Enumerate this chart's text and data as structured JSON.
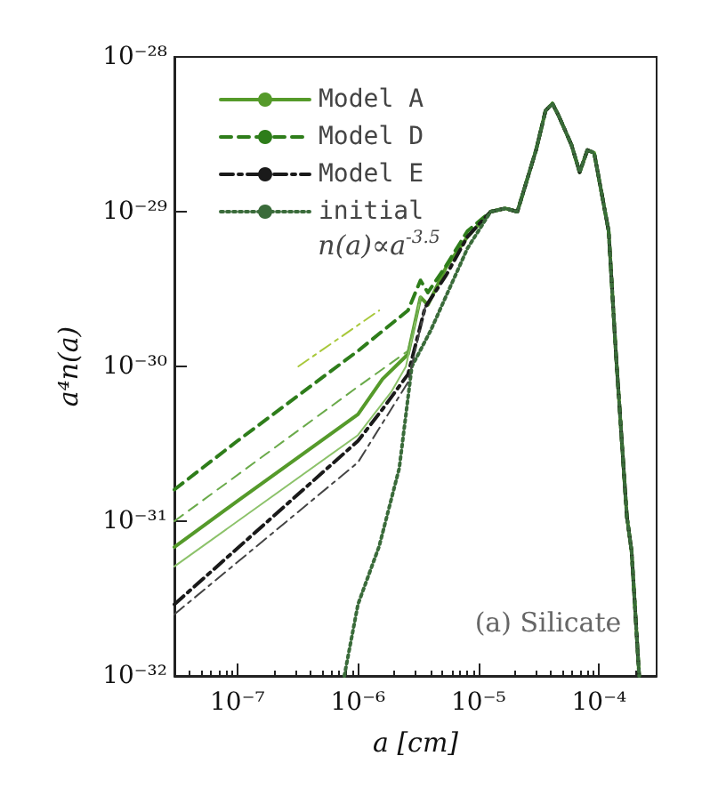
{
  "chart_data": {
    "type": "line",
    "xlabel": "a [cm]",
    "ylabel": "a⁴n(a)",
    "log": "xy",
    "grid": false,
    "legend": "top left",
    "marker": "none",
    "xlim": [
      3e-08,
      0.0003
    ],
    "ylim": [
      1e-32,
      1e-28
    ],
    "xticks": [
      {
        "value": 1e-07,
        "label": "10⁻⁷"
      },
      {
        "value": 1e-06,
        "label": "10⁻⁶"
      },
      {
        "value": 1e-05,
        "label": "10⁻⁵"
      },
      {
        "value": 0.0001,
        "label": "10⁻⁴"
      }
    ],
    "yticks": [
      {
        "value": 1e-32,
        "label": "10⁻³²"
      },
      {
        "value": 1e-31,
        "label": "10⁻³¹"
      },
      {
        "value": 1e-30,
        "label": "10⁻³⁰"
      },
      {
        "value": 1e-29,
        "label": "10⁻²⁹"
      },
      {
        "value": 1e-28,
        "label": "10⁻²⁸"
      }
    ],
    "annotations": [
      "n(a)∝a$^{-3.5}$",
      "(a) Silicate"
    ],
    "series": [
      {
        "name": "Model A",
        "color": "#559a2a",
        "line_style": "solid",
        "x": [
          3e-08,
          1e-07,
          1e-06,
          1.6e-06,
          2.6e-06,
          3.3e-06,
          3.8e-06,
          5.4e-06,
          8.1e-06,
          1.26e-05,
          1.67e-05,
          2.1e-05,
          3e-05,
          3.6e-05,
          4.1e-05,
          4.6e-05,
          5.9e-05,
          6.9e-05,
          8e-05,
          9.1e-05,
          0.00012,
          0.000138,
          0.00017,
          0.000186,
          0.000215
        ],
        "values": [
          6.8e-32,
          1.35e-31,
          4.9e-31,
          8.3e-31,
          1.2e-30,
          2.8e-30,
          2.5e-30,
          4.4e-30,
          6.9e-30,
          1e-29,
          1.05e-29,
          1e-29,
          2.5e-29,
          4.5e-29,
          5e-29,
          4.2e-29,
          2.7e-29,
          1.8e-29,
          2.5e-29,
          2.4e-29,
          7.5e-30,
          1.2e-30,
          1.07e-31,
          6.4e-32,
          1e-32
        ]
      },
      {
        "name": "Model D",
        "color": "#2e7d1a",
        "line_style": "dashed",
        "x": [
          3e-08,
          1e-07,
          1e-06,
          2.6e-06,
          3.3e-06,
          3.8e-06,
          5.4e-06,
          8.1e-06,
          1.26e-05,
          1.67e-05,
          2.1e-05,
          3e-05,
          3.6e-05,
          4.1e-05,
          4.6e-05,
          5.9e-05,
          6.9e-05,
          8e-05,
          9.1e-05,
          0.00012,
          0.000138,
          0.00017,
          0.000186,
          0.000215
        ],
        "values": [
          1.6e-31,
          3.3e-31,
          1.26e-30,
          2.3e-30,
          3.6e-30,
          3e-30,
          4.5e-30,
          7.5e-30,
          1e-29,
          1.05e-29,
          1e-29,
          2.5e-29,
          4.5e-29,
          5e-29,
          4.2e-29,
          2.7e-29,
          1.8e-29,
          2.5e-29,
          2.4e-29,
          7.5e-30,
          1.2e-30,
          1.07e-31,
          6.4e-32,
          1e-32
        ]
      },
      {
        "name": "Model E",
        "color": "#1a1a1a",
        "line_style": "dashdot",
        "x": [
          3e-08,
          1e-06,
          1.6e-06,
          2.6e-06,
          3.6e-06,
          5.4e-06,
          8.1e-06,
          1.26e-05,
          1.67e-05,
          2.1e-05,
          3e-05,
          3.6e-05,
          4.1e-05,
          4.6e-05,
          5.9e-05,
          6.9e-05,
          8e-05,
          9.1e-05,
          0.00012,
          0.000138,
          0.00017,
          0.000186,
          0.000215
        ],
        "values": [
          2.9e-32,
          3.3e-31,
          5.3e-31,
          8.9e-31,
          2.4e-30,
          3.9e-30,
          6.9e-30,
          1e-29,
          1.05e-29,
          1e-29,
          2.5e-29,
          4.5e-29,
          5e-29,
          4.2e-29,
          2.7e-29,
          1.8e-29,
          2.5e-29,
          2.4e-29,
          7.5e-30,
          1.2e-30,
          1.07e-31,
          6.4e-32,
          1e-32
        ]
      },
      {
        "name": "initial",
        "color": "#3a6b3a",
        "line_style": "dotted",
        "x": [
          7.7e-07,
          1e-06,
          1.5e-06,
          2.2e-06,
          2.8e-06,
          4e-06,
          8.1e-06,
          1.26e-05,
          1.67e-05,
          2.1e-05,
          3e-05,
          3.6e-05,
          4.1e-05,
          4.6e-05,
          5.9e-05,
          6.9e-05,
          8e-05,
          9.1e-05,
          0.00012,
          0.000138,
          0.00017,
          0.000186,
          0.000215
        ],
        "values": [
          1e-32,
          2.9e-32,
          6.9e-32,
          2.2e-31,
          1e-30,
          1.7e-30,
          5.8e-30,
          1e-29,
          1.05e-29,
          1e-29,
          2.5e-29,
          4.5e-29,
          5e-29,
          4.2e-29,
          2.7e-29,
          1.8e-29,
          2.5e-29,
          2.4e-29,
          7.5e-30,
          1.2e-30,
          1.07e-31,
          6.4e-32,
          1e-32
        ]
      },
      {
        "color": "#8cc26a",
        "line_style": "solid",
        "x": [
          3e-08,
          1e-06,
          1.9e-06,
          2.5e-06,
          3.3e-06
        ],
        "values": [
          5.1e-32,
          3.6e-31,
          6.9e-31,
          1e-30,
          2.8e-30
        ]
      },
      {
        "color": "#6aaa4a",
        "line_style": "dashed",
        "x": [
          3e-08,
          1e-06,
          2.6e-06,
          3.3e-06
        ],
        "values": [
          1e-31,
          7.4e-31,
          1.26e-30,
          2.8e-30
        ]
      },
      {
        "color": "#444444",
        "line_style": "dashdot",
        "x": [
          3e-08,
          1e-06,
          2.6e-06,
          3.6e-06
        ],
        "values": [
          2.5e-32,
          2.4e-31,
          7.9e-31,
          2.4e-30
        ]
      },
      {
        "color": "#a8c83a",
        "line_style": "dashdot",
        "x": [
          3.2e-07,
          1.5e-06
        ],
        "values": [
          1e-30,
          2.3e-30
        ]
      }
    ]
  }
}
